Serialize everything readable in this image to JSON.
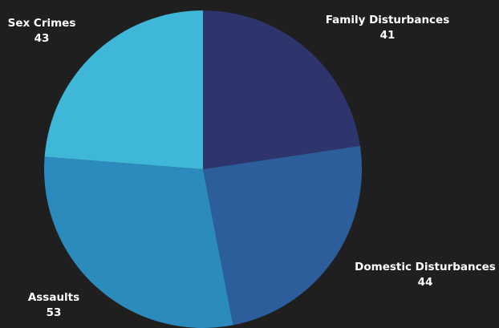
{
  "chart_data": {
    "type": "pie",
    "title": "",
    "legend": "none",
    "start_angle_deg": 0,
    "direction": "clockwise",
    "slices": [
      {
        "label": "Family Disturbances",
        "value": 41,
        "color": "#2e346c"
      },
      {
        "label": "Domestic Disturbances",
        "value": 44,
        "color": "#2c5e9c"
      },
      {
        "label": "Assaults",
        "value": 53,
        "color": "#2b8bbd"
      },
      {
        "label": "Sex Crimes",
        "value": 43,
        "color": "#3eb7d9"
      }
    ]
  }
}
